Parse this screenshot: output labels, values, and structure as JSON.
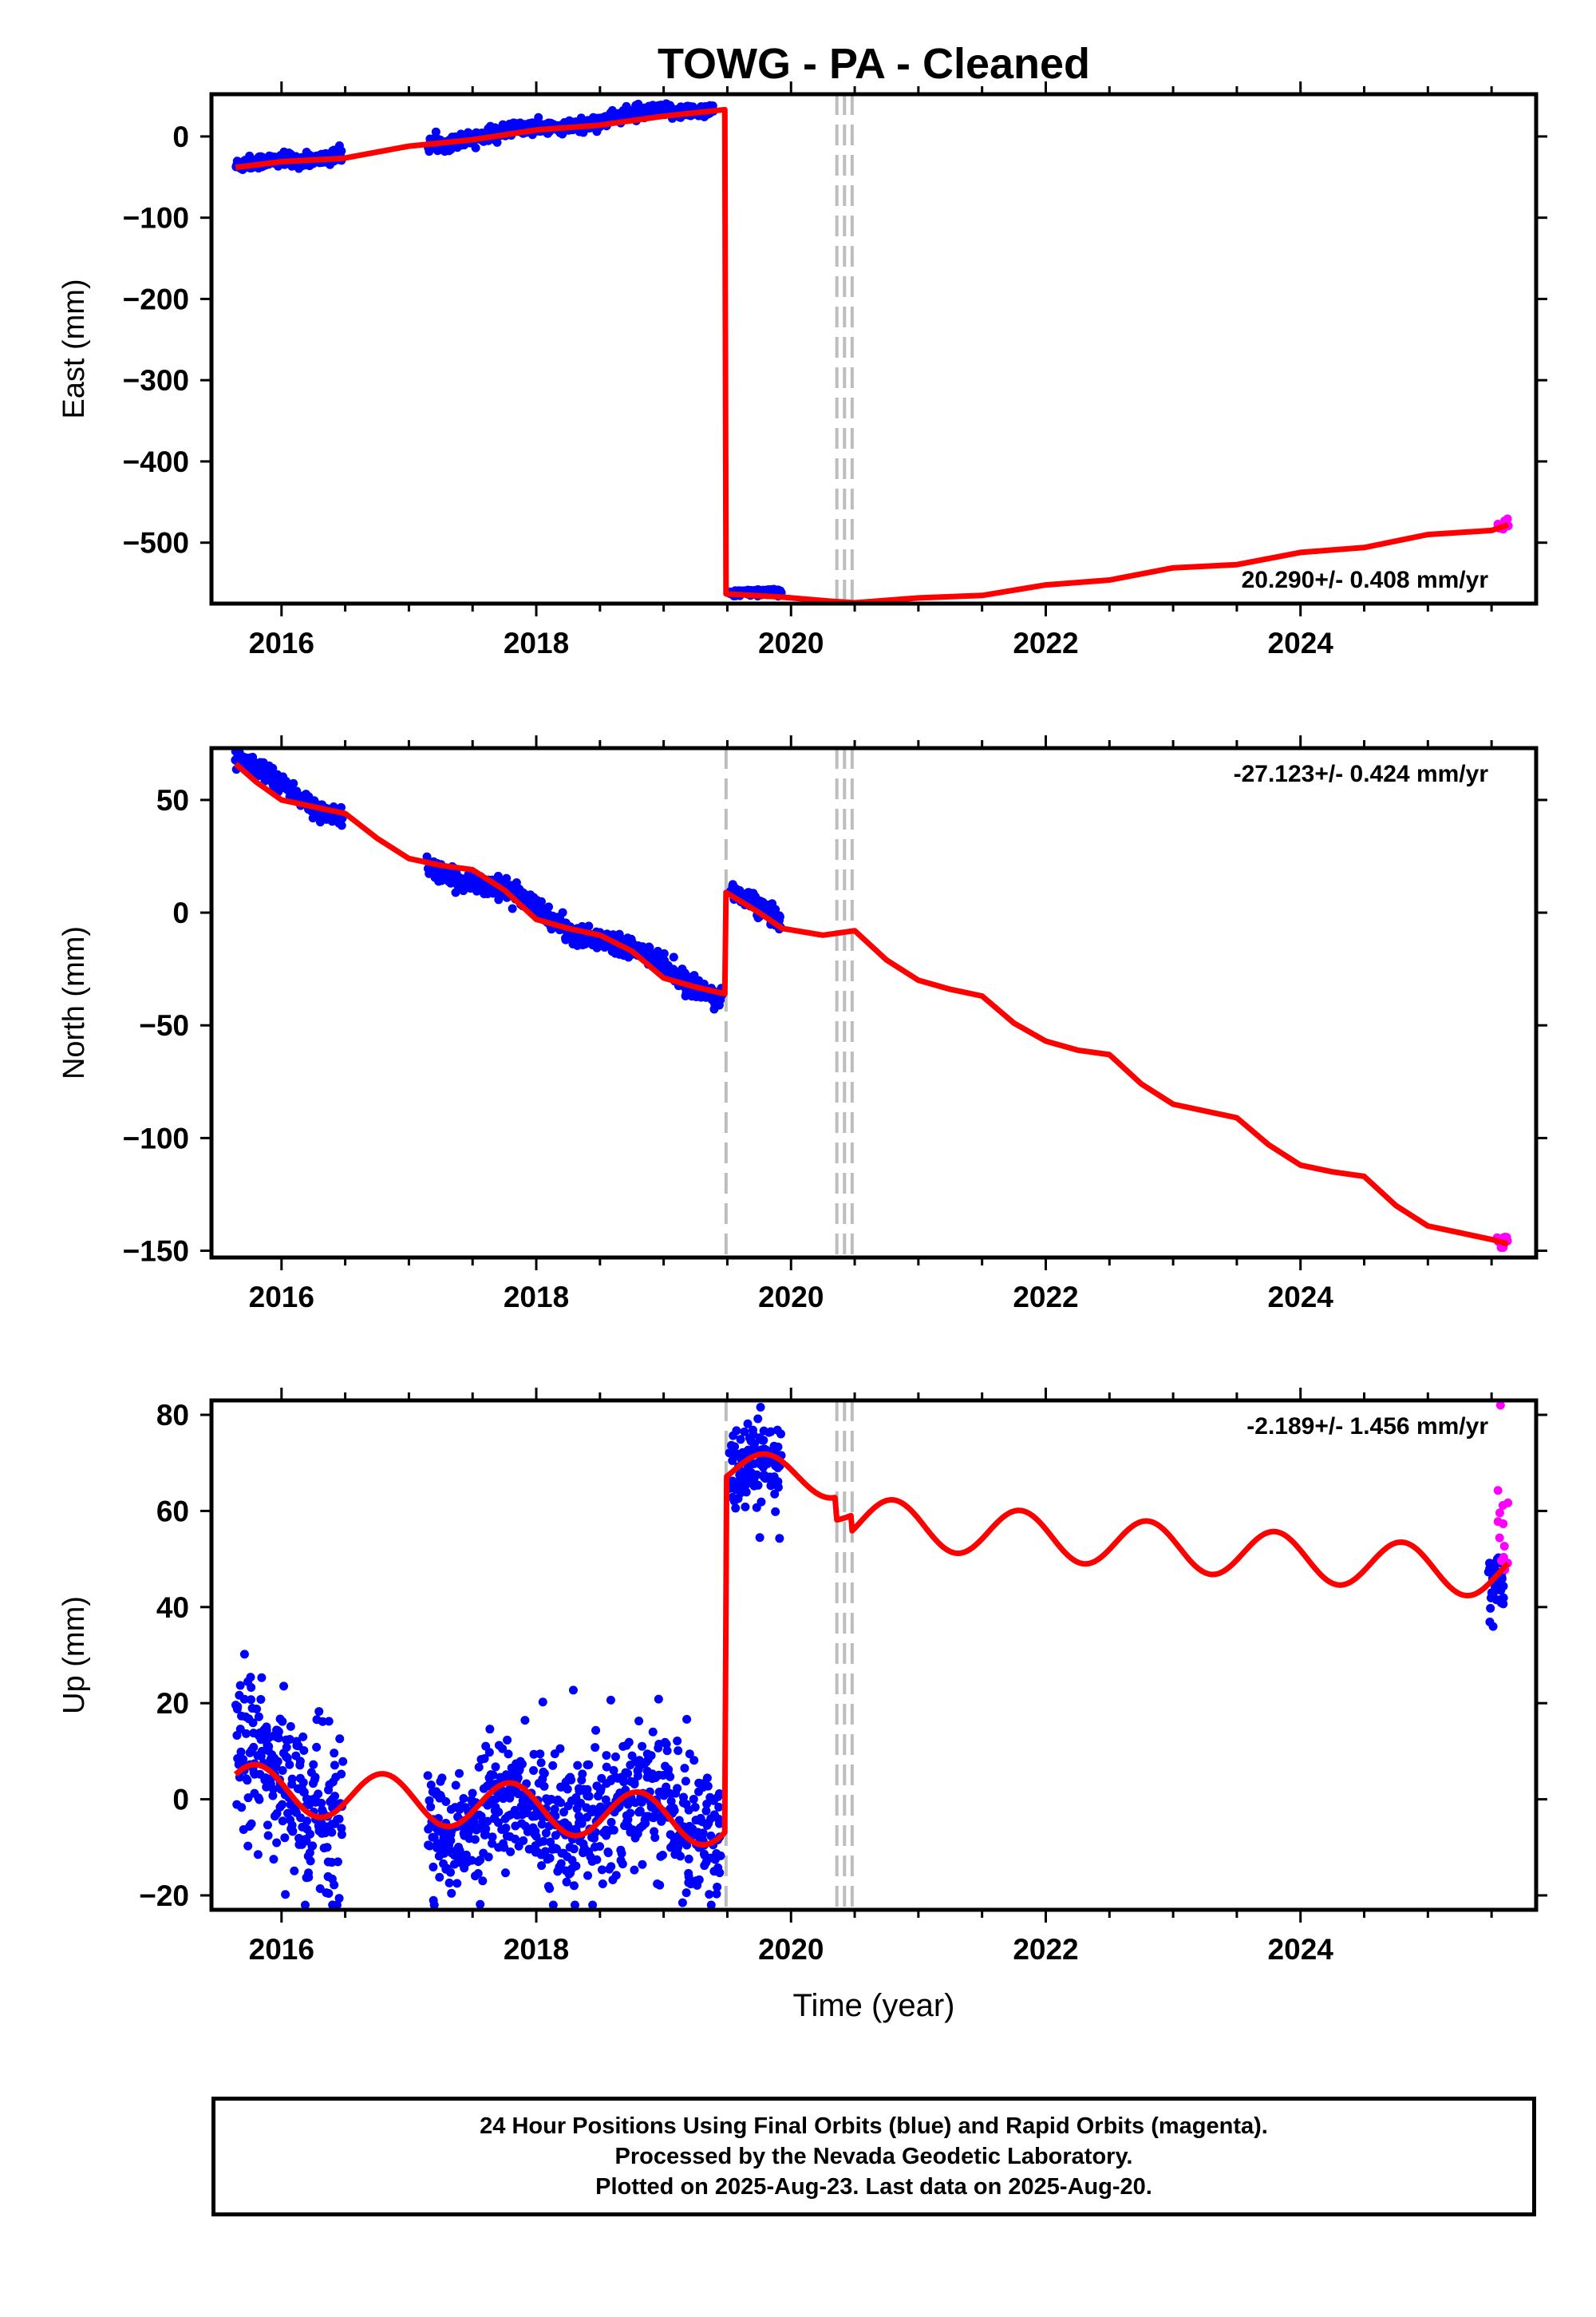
{
  "title": "TOWG  - PA - Cleaned",
  "colors": {
    "final": "#0000ff",
    "rapid": "#ff00ff",
    "model": "#ff0000",
    "breaks": "#bdbdbd",
    "frame": "#000000"
  },
  "x_axis": {
    "label": "Time (year)",
    "ticks": [
      2016,
      2018,
      2020,
      2022,
      2024
    ],
    "range": [
      2015.45,
      2025.85
    ]
  },
  "chart_data": [
    {
      "type": "scatter",
      "id": "east",
      "ylabel": "East (mm)",
      "ylim": [
        -575,
        52
      ],
      "yticks": [
        0,
        -100,
        -200,
        -300,
        -400,
        -500
      ],
      "rate_label": "20.290+/- 0.408 mm/yr",
      "rate_position": "bottom-right",
      "breaks": [
        2020.36,
        2020.42,
        2020.48
      ],
      "segments": [
        {
          "name": "final",
          "from": 2015.64,
          "to": 2016.48,
          "y0": -38,
          "slope": 20.3,
          "amp": 3.5,
          "noise": 4
        },
        {
          "name": "final",
          "from": 2017.15,
          "to": 2019.39,
          "y0": -8,
          "slope": 20.3,
          "amp": 3.5,
          "noise": 4
        },
        {
          "name": "final",
          "from": 2019.52,
          "to": 2019.92,
          "y0": -563,
          "slope": 4,
          "amp": 1.5,
          "noise": 2
        },
        {
          "name": "rapid",
          "from": 2025.55,
          "to": 2025.63,
          "y0": -480,
          "slope": 0,
          "amp": 0,
          "noise": 4
        }
      ],
      "model": [
        [
          2015.64,
          -38
        ],
        [
          2016.0,
          -31
        ],
        [
          2016.48,
          -27
        ],
        [
          2017.0,
          -12
        ],
        [
          2017.5,
          -4
        ],
        [
          2018.0,
          8
        ],
        [
          2018.5,
          14
        ],
        [
          2019.0,
          25
        ],
        [
          2019.48,
          33
        ],
        [
          2019.49,
          -563
        ],
        [
          2019.93,
          -567
        ],
        [
          2020.3,
          -572
        ],
        [
          2020.5,
          -574
        ],
        [
          2021.0,
          -568
        ],
        [
          2021.5,
          -565
        ],
        [
          2022.0,
          -552
        ],
        [
          2022.5,
          -546
        ],
        [
          2023.0,
          -531
        ],
        [
          2023.5,
          -527
        ],
        [
          2024.0,
          -512
        ],
        [
          2024.5,
          -506
        ],
        [
          2025.0,
          -490
        ],
        [
          2025.5,
          -485
        ],
        [
          2025.63,
          -478
        ]
      ]
    },
    {
      "type": "scatter",
      "id": "north",
      "ylabel": "North (mm)",
      "ylim": [
        -153,
        73
      ],
      "yticks": [
        50,
        0,
        -50,
        -100,
        -150
      ],
      "rate_label": "-27.123+/- 0.424 mm/yr",
      "rate_position": "top-right",
      "breaks": [
        2019.49,
        2020.36,
        2020.42,
        2020.48
      ],
      "segments": [
        {
          "name": "final",
          "from": 2015.64,
          "to": 2016.48,
          "y0": 66,
          "slope": -27,
          "amp": 3,
          "noise": 2
        },
        {
          "name": "final",
          "from": 2017.15,
          "to": 2019.45,
          "y0": 23,
          "slope": -25.5,
          "amp": 3,
          "noise": 2
        },
        {
          "name": "final",
          "from": 2019.52,
          "to": 2019.92,
          "y0": 10,
          "slope": -40,
          "amp": 2,
          "noise": 2
        },
        {
          "name": "rapid",
          "from": 2025.55,
          "to": 2025.63,
          "y0": -145,
          "slope": 0,
          "amp": 0,
          "noise": 2
        }
      ],
      "model": [
        [
          2015.64,
          66
        ],
        [
          2015.8,
          58
        ],
        [
          2016.0,
          50
        ],
        [
          2016.25,
          47
        ],
        [
          2016.5,
          44
        ],
        [
          2016.75,
          33
        ],
        [
          2017.0,
          24
        ],
        [
          2017.25,
          21
        ],
        [
          2017.5,
          19
        ],
        [
          2017.75,
          10
        ],
        [
          2018.0,
          -3
        ],
        [
          2018.25,
          -7
        ],
        [
          2018.5,
          -10
        ],
        [
          2018.75,
          -17
        ],
        [
          2019.0,
          -29
        ],
        [
          2019.25,
          -33
        ],
        [
          2019.48,
          -36
        ],
        [
          2019.49,
          9
        ],
        [
          2019.75,
          0
        ],
        [
          2019.93,
          -7
        ],
        [
          2020.25,
          -10
        ],
        [
          2020.5,
          -8
        ],
        [
          2020.75,
          -21
        ],
        [
          2021.0,
          -30
        ],
        [
          2021.25,
          -34
        ],
        [
          2021.5,
          -37
        ],
        [
          2021.75,
          -49
        ],
        [
          2022.0,
          -57
        ],
        [
          2022.25,
          -61
        ],
        [
          2022.5,
          -63
        ],
        [
          2022.75,
          -76
        ],
        [
          2023.0,
          -85
        ],
        [
          2023.25,
          -88
        ],
        [
          2023.5,
          -91
        ],
        [
          2023.75,
          -103
        ],
        [
          2024.0,
          -112
        ],
        [
          2024.25,
          -115
        ],
        [
          2024.5,
          -117
        ],
        [
          2024.75,
          -130
        ],
        [
          2025.0,
          -139
        ],
        [
          2025.25,
          -142
        ],
        [
          2025.5,
          -145
        ],
        [
          2025.63,
          -147
        ]
      ]
    },
    {
      "type": "scatter",
      "id": "up",
      "ylabel": "Up (mm)",
      "ylim": [
        -23,
        83
      ],
      "yticks": [
        80,
        60,
        40,
        20,
        0,
        -20
      ],
      "rate_label": "-2.189+/- 1.456 mm/yr",
      "rate_position": "top-right",
      "breaks": [
        2019.49,
        2020.36,
        2020.42,
        2020.48
      ],
      "segments": [
        {
          "name": "final",
          "from": 2015.64,
          "to": 2016.48,
          "y0": 6,
          "slope": -8,
          "amp": 4.5,
          "noise": 8
        },
        {
          "name": "final",
          "from": 2017.15,
          "to": 2019.45,
          "y0": -3,
          "slope": 0,
          "amp": 4.5,
          "noise": 7
        },
        {
          "name": "final",
          "from": 2019.52,
          "to": 2019.92,
          "y0": 68,
          "slope": 0,
          "amp": 2,
          "noise": 5
        },
        {
          "name": "final",
          "from": 2025.48,
          "to": 2025.6,
          "y0": 45,
          "slope": 0,
          "amp": 0,
          "noise": 3.5
        },
        {
          "name": "rapid",
          "from": 2025.55,
          "to": 2025.63,
          "y0": 55,
          "slope": 0,
          "amp": 0,
          "noise": 6
        }
      ],
      "model": []
    }
  ],
  "footer": {
    "line1": "24 Hour Positions Using Final Orbits (blue) and Rapid Orbits (magenta).",
    "line2": "Processed by the Nevada Geodetic Laboratory.",
    "line3": "Plotted on 2025-Aug-23. Last data on 2025-Aug-20."
  }
}
